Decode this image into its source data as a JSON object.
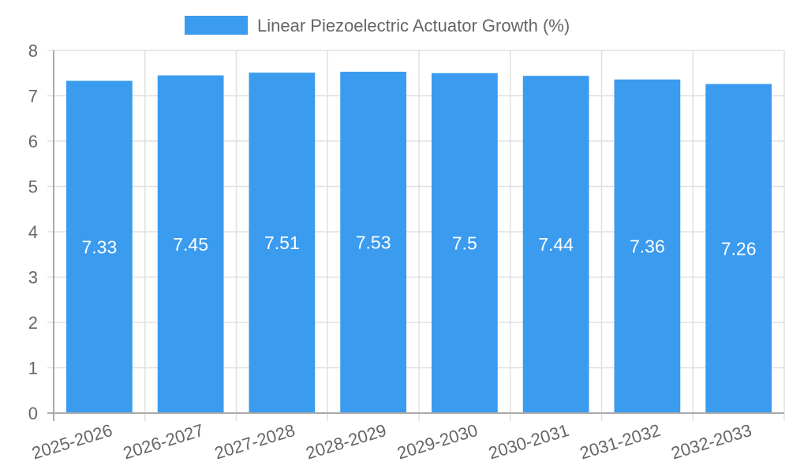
{
  "chart_data": {
    "type": "bar",
    "title": "",
    "legend": [
      {
        "label": "Linear Piezoelectric Actuator Growth (%)",
        "color": "#3a9bef"
      }
    ],
    "legend_position": "top",
    "categories": [
      "2025-2026",
      "2026-2027",
      "2027-2028",
      "2028-2029",
      "2029-2030",
      "2030-2031",
      "2031-2032",
      "2032-2033"
    ],
    "series": [
      {
        "name": "Linear Piezoelectric Actuator Growth (%)",
        "values": [
          7.33,
          7.45,
          7.51,
          7.53,
          7.5,
          7.44,
          7.36,
          7.26
        ],
        "color": "#3a9bef"
      }
    ],
    "data_labels": [
      "7.33",
      "7.45",
      "7.51",
      "7.53",
      "7.5",
      "7.44",
      "7.36",
      "7.26"
    ],
    "xlabel": "",
    "ylabel": "",
    "ylim": [
      0,
      8
    ],
    "yticks": [
      0,
      1,
      2,
      3,
      4,
      5,
      6,
      7,
      8
    ],
    "grid": true
  },
  "colors": {
    "bar": "#3a9bef",
    "grid": "#e0e0e0",
    "axis": "#aaaaaa",
    "text": "#666666",
    "label": "#ffffff"
  }
}
